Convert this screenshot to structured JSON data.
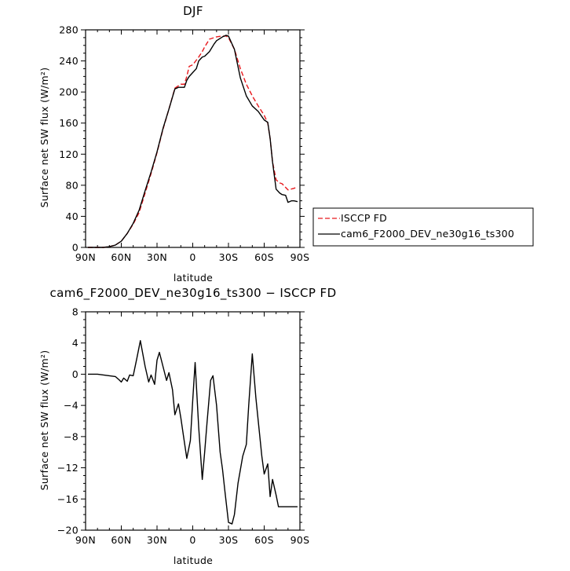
{
  "chart_data": [
    {
      "type": "line",
      "title": "DJF",
      "xlabel": "latitude",
      "ylabel": "Surface net SW flux (W/m²)",
      "xlim": [
        -90,
        90
      ],
      "ylim": [
        0,
        280
      ],
      "xticks": [
        -90,
        -60,
        -30,
        0,
        30,
        60,
        90
      ],
      "xtick_labels": [
        "90N",
        "60N",
        "30N",
        "0",
        "30S",
        "60S",
        "90S"
      ],
      "yticks": [
        0,
        40,
        80,
        120,
        160,
        200,
        240,
        280
      ],
      "ytick_labels": [
        "0",
        "40",
        "80",
        "120",
        "160",
        "200",
        "240",
        "280"
      ],
      "legend": {
        "placement": "right"
      },
      "series": [
        {
          "name": "ISCCP FD",
          "color": "#e8191d",
          "dash": true,
          "x": [
            -88,
            -85,
            -80,
            -75,
            -70,
            -65,
            -60,
            -55,
            -50,
            -45,
            -40,
            -35,
            -30,
            -25,
            -20,
            -15,
            -10,
            -7,
            -5,
            -3,
            0,
            5,
            8,
            10,
            14,
            18,
            20,
            25,
            28,
            30,
            35,
            40,
            45,
            50,
            55,
            60,
            63,
            65,
            67,
            70,
            73,
            75,
            80,
            85,
            88
          ],
          "y": [
            0,
            0,
            0,
            0,
            1,
            3,
            8,
            18,
            30,
            45,
            70,
            95,
            122,
            152,
            178,
            205,
            210,
            210,
            220,
            233,
            235,
            245,
            252,
            258,
            268,
            270,
            271,
            272,
            272,
            270,
            255,
            230,
            210,
            195,
            182,
            170,
            160,
            140,
            110,
            87,
            83,
            82,
            74,
            76,
            78
          ]
        },
        {
          "name": "cam6_F2000_DEV_ne30g16_ts300",
          "color": "#000000",
          "dash": false,
          "x": [
            -88,
            -85,
            -80,
            -75,
            -70,
            -65,
            -60,
            -55,
            -50,
            -45,
            -40,
            -35,
            -30,
            -25,
            -20,
            -15,
            -12,
            -10,
            -7,
            -5,
            -3,
            0,
            3,
            5,
            8,
            10,
            14,
            18,
            20,
            25,
            28,
            30,
            35,
            40,
            45,
            50,
            55,
            60,
            63,
            65,
            67,
            70,
            73,
            75,
            78,
            80,
            83,
            85,
            88
          ],
          "y": [
            0,
            0,
            0,
            0,
            1,
            3,
            8,
            18,
            31,
            48,
            73,
            97,
            123,
            153,
            178,
            204,
            206,
            206,
            206,
            215,
            220,
            225,
            230,
            240,
            245,
            246,
            252,
            262,
            266,
            271,
            273,
            272,
            255,
            218,
            195,
            182,
            175,
            164,
            161,
            140,
            110,
            75,
            70,
            68,
            67,
            58,
            60,
            60,
            59
          ]
        }
      ]
    },
    {
      "type": "line",
      "title": "cam6_F2000_DEV_ne30g16_ts300 − ISCCP FD",
      "xlabel": "latitude",
      "ylabel": "Surface net SW flux (W/m²)",
      "xlim": [
        -90,
        90
      ],
      "ylim": [
        -20,
        8
      ],
      "xticks": [
        -90,
        -60,
        -30,
        0,
        30,
        60,
        90
      ],
      "xtick_labels": [
        "90N",
        "60N",
        "30N",
        "0",
        "30S",
        "60S",
        "90S"
      ],
      "yticks": [
        -20,
        -16,
        -12,
        -8,
        -4,
        0,
        4,
        8
      ],
      "ytick_labels": [
        "−20",
        "−16",
        "−12",
        "−8",
        "−4",
        "0",
        "4",
        "8"
      ],
      "series": [
        {
          "color": "#000000",
          "x": [
            -88,
            -80,
            -75,
            -70,
            -65,
            -62,
            -60,
            -58,
            -55,
            -53,
            -50,
            -47,
            -44,
            -40,
            -37,
            -35,
            -32,
            -30,
            -28,
            -25,
            -22,
            -20,
            -17,
            -15,
            -12,
            -10,
            -8,
            -5,
            -2,
            0,
            2,
            5,
            8,
            10,
            12,
            15,
            17,
            20,
            23,
            25,
            27,
            30,
            33,
            35,
            38,
            42,
            45,
            47,
            50,
            53,
            55,
            58,
            60,
            63,
            65,
            67,
            70,
            72,
            75,
            77,
            80,
            82,
            85,
            88
          ],
          "y": [
            0,
            0,
            -0.1,
            -0.2,
            -0.3,
            -0.7,
            -1,
            -0.5,
            -0.9,
            -0.1,
            -0.2,
            2,
            4.3,
            1,
            -1,
            -0.1,
            -1.3,
            1.8,
            2.8,
            1,
            -0.8,
            0.2,
            -2,
            -5.2,
            -3.8,
            -5.6,
            -7.7,
            -10.8,
            -8.5,
            -3.3,
            1.5,
            -6.8,
            -13.5,
            -10,
            -6.2,
            -0.8,
            -0.2,
            -4,
            -10,
            -12.2,
            -15,
            -19,
            -19.2,
            -18,
            -14,
            -10.5,
            -9,
            -4,
            2.6,
            -3,
            -6,
            -10.5,
            -12.8,
            -11.5,
            -15.7,
            -13.5,
            -15.5,
            -17,
            -17,
            -17,
            -17,
            -17,
            -17,
            -17
          ]
        }
      ]
    }
  ]
}
